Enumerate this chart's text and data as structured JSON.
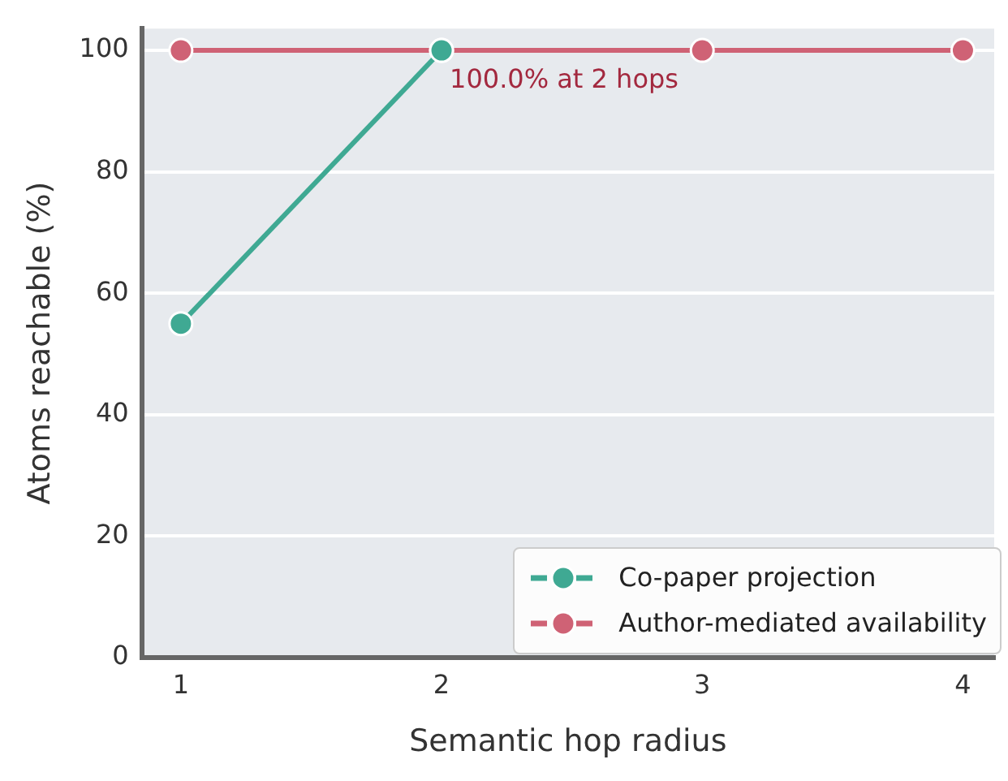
{
  "chart_data": {
    "type": "line",
    "xlabel": "Semantic hop radius",
    "ylabel": "Atoms reachable (%)",
    "x": [
      1,
      2,
      3,
      4
    ],
    "series": [
      {
        "name": "Co-paper projection",
        "color": "#3fa993",
        "values": [
          55,
          100,
          null,
          null
        ]
      },
      {
        "name": "Author-mediated availability",
        "color": "#cf6275",
        "values": [
          100,
          100,
          100,
          100
        ]
      }
    ],
    "xlim": [
      0.85,
      4.12
    ],
    "xticks": [
      1,
      2,
      3,
      4
    ],
    "ylim": [
      0,
      103.6
    ],
    "yticks": [
      0,
      20,
      40,
      60,
      80,
      100
    ],
    "annotations": [
      {
        "text": "100.0% at 2 hops",
        "x": 2,
        "y": 100
      }
    ],
    "grid": "y",
    "legend": "bottom right",
    "marker": "circle",
    "line_style": "solid"
  }
}
